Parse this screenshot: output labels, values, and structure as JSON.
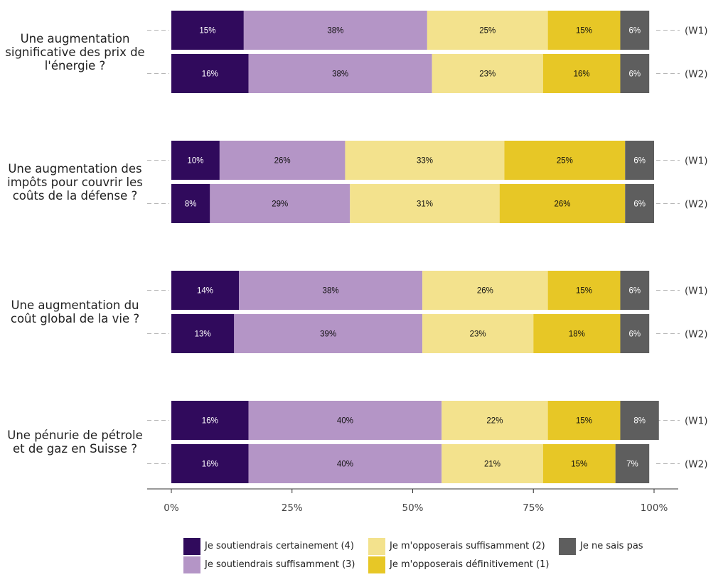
{
  "chart_data": {
    "type": "bar",
    "orientation": "horizontal-stacked",
    "questions": [
      {
        "label": "Une augmentation significative des prix de l'énergie ?",
        "rows": [
          {
            "wave": "(W1)",
            "values": [
              15,
              38,
              25,
              15,
              6
            ]
          },
          {
            "wave": "(W2)",
            "values": [
              16,
              38,
              23,
              16,
              6
            ]
          }
        ]
      },
      {
        "label": "Une augmentation des impôts pour couvrir les coûts de la défense ?",
        "rows": [
          {
            "wave": "(W1)",
            "values": [
              10,
              26,
              33,
              25,
              6
            ]
          },
          {
            "wave": "(W2)",
            "values": [
              8,
              29,
              31,
              26,
              6
            ]
          }
        ]
      },
      {
        "label": "Une augmentation du coût global de la vie ?",
        "rows": [
          {
            "wave": "(W1)",
            "values": [
              14,
              38,
              26,
              15,
              6
            ]
          },
          {
            "wave": "(W2)",
            "values": [
              13,
              39,
              23,
              18,
              6
            ]
          }
        ]
      },
      {
        "label": "Une pénurie de pétrole et de gaz en Suisse ?",
        "rows": [
          {
            "wave": "(W1)",
            "values": [
              16,
              40,
              22,
              15,
              8
            ]
          },
          {
            "wave": "(W2)",
            "values": [
              16,
              40,
              21,
              15,
              7
            ]
          }
        ]
      }
    ],
    "series": [
      {
        "name": "Je soutiendrais certainement (4)",
        "color": "#300a5c",
        "text_color": "#ffffff"
      },
      {
        "name": "Je soutiendrais suffisamment (3)",
        "color": "#b495c6",
        "text_color": "#111111"
      },
      {
        "name": "Je m'opposerais suffisamment (2)",
        "color": "#f3e28d",
        "text_color": "#111111"
      },
      {
        "name": "Je m'opposerais définitivement (1)",
        "color": "#e7c726",
        "text_color": "#111111"
      },
      {
        "name": "Je ne sais pas",
        "color": "#5e5e5e",
        "text_color": "#ffffff"
      }
    ],
    "x_ticks": [
      "0%",
      "25%",
      "50%",
      "75%",
      "100%"
    ],
    "xlim": [
      0,
      100
    ],
    "legend_position": "bottom",
    "grid": false
  }
}
